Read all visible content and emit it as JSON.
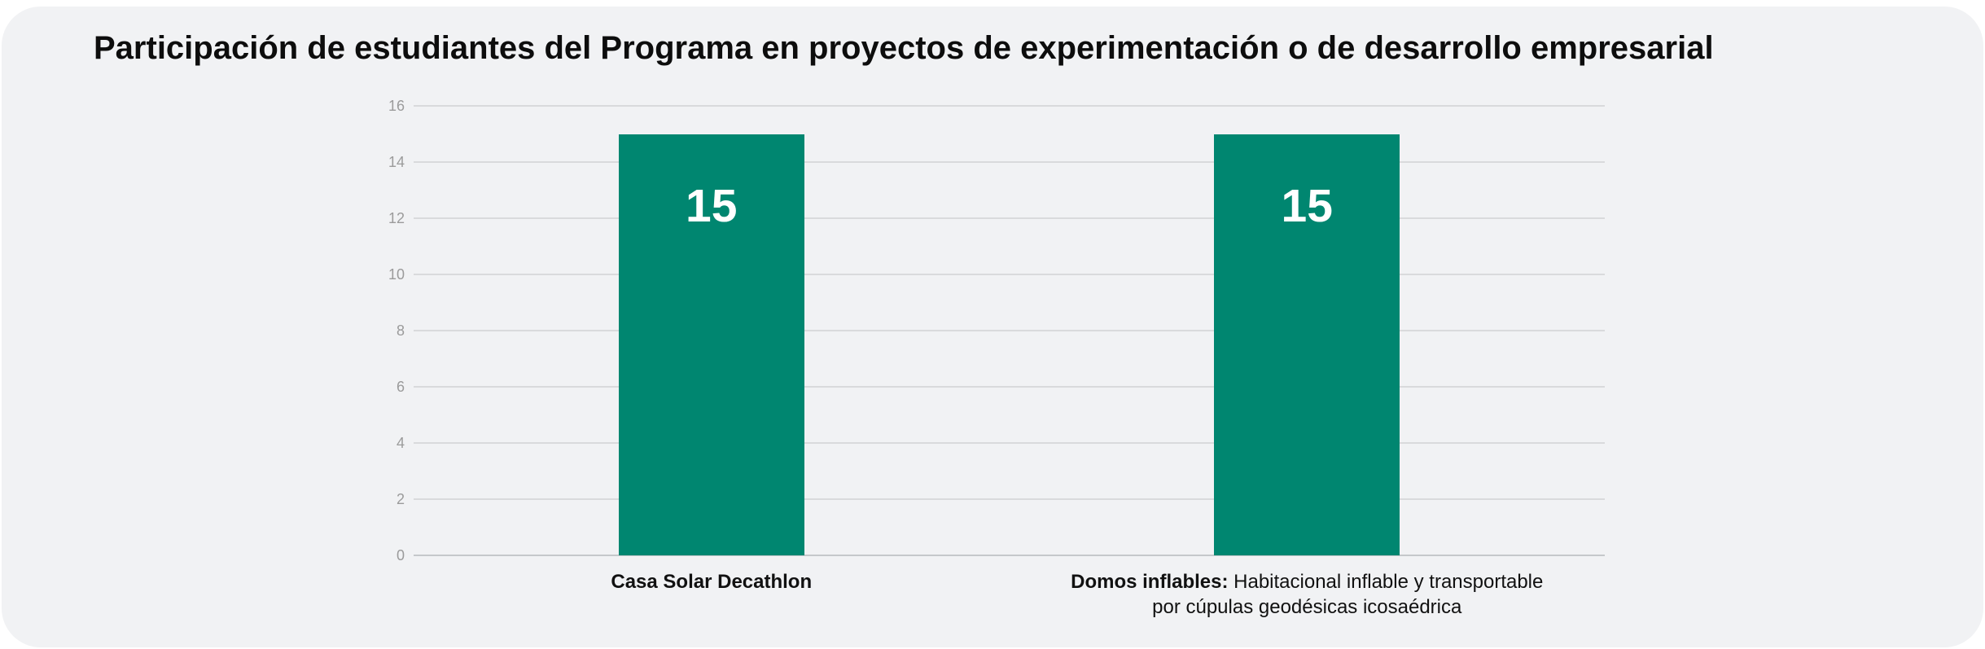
{
  "chart_data": {
    "type": "bar",
    "title": "Participación de estudiantes del Programa en proyectos de experimentación o de desarrollo empresarial",
    "categories": [
      "Casa Solar Decathlon",
      "Domos inflables: Habitacional inflable y transportable por cúpulas geodésicas icosaédrica"
    ],
    "category_lines": [
      [
        [
          {
            "text": "Casa Solar Decathlon",
            "bold": true
          }
        ]
      ],
      [
        [
          {
            "text": "Domos inflables:",
            "bold": true
          },
          {
            "text": " Habitacional inflable y transportable",
            "bold": false
          }
        ],
        [
          {
            "text": "por cúpulas geodésicas icosaédrica",
            "bold": false
          }
        ]
      ]
    ],
    "values": [
      15,
      15
    ],
    "bar_labels": [
      "15",
      "15"
    ],
    "ylim": [
      0,
      16
    ],
    "yticks": [
      0,
      2,
      4,
      6,
      8,
      10,
      12,
      14,
      16
    ],
    "grid": true,
    "legend": null,
    "xlabel": "",
    "ylabel": ""
  },
  "colors": {
    "bar": "#008670",
    "bar_label": "#ffffff",
    "card_bg": "#f1f2f4",
    "page_bg": "#ffffff",
    "gridline": "#d9dadc",
    "axis_line": "#c5c8cb",
    "tick_label": "#9b9b9b",
    "title_text": "#0d0d0d",
    "category_label": "#111111"
  }
}
